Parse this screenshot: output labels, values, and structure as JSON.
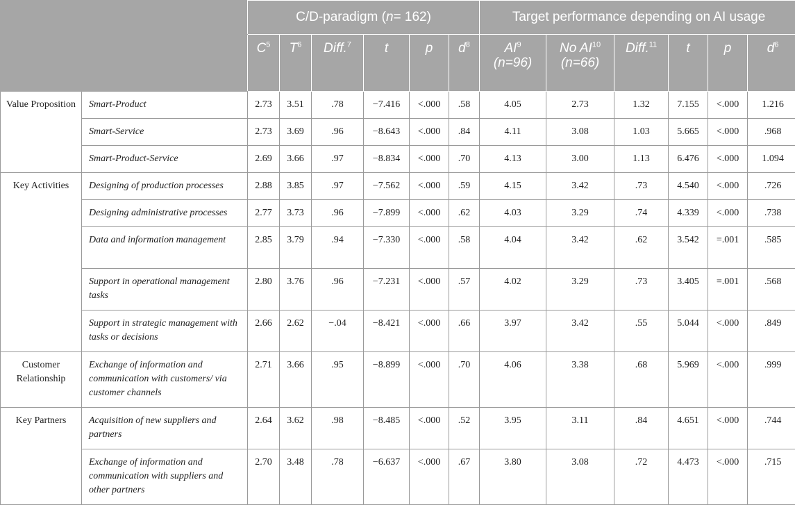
{
  "header": {
    "group1": "C/D-paradigm (n= 162)",
    "group1_pre": "C/D-paradigm (",
    "group1_n": "n",
    "group1_post": "= 162)",
    "group2": "Target performance depending on AI usage",
    "cols": [
      {
        "label": "C",
        "sup": "5"
      },
      {
        "label": "T",
        "sup": "6"
      },
      {
        "label": "Diff.",
        "sup": "7"
      },
      {
        "label": "t",
        "sup": ""
      },
      {
        "label": "p",
        "sup": ""
      },
      {
        "label": "d",
        "sup": "8"
      },
      {
        "label": "AI",
        "sup": "9",
        "sub": "(n=96)"
      },
      {
        "label": "No AI",
        "sup": "10",
        "sub": "(n=66)"
      },
      {
        "label": "Diff.",
        "sup": "11"
      },
      {
        "label": "t",
        "sup": ""
      },
      {
        "label": "p",
        "sup": ""
      },
      {
        "label": "d",
        "sup": "6"
      }
    ]
  },
  "rows": [
    {
      "category": "Value Proposition",
      "item": "Smart-Product",
      "values": [
        "2.73",
        "3.51",
        ".78",
        "−7.416",
        "<.000",
        ".58",
        "4.05",
        "2.73",
        "1.32",
        "7.155",
        "<.000",
        "1.216"
      ]
    },
    {
      "category": "",
      "item": "Smart-Service",
      "values": [
        "2.73",
        "3.69",
        ".96",
        "−8.643",
        "<.000",
        ".84",
        "4.11",
        "3.08",
        "1.03",
        "5.665",
        "<.000",
        ".968"
      ]
    },
    {
      "category": "",
      "item": "Smart-Product-Service",
      "values": [
        "2.69",
        "3.66",
        ".97",
        "−8.834",
        "<.000",
        ".70",
        "4.13",
        "3.00",
        "1.13",
        "6.476",
        "<.000",
        "1.094"
      ]
    },
    {
      "category": "Key Activities",
      "item": "Designing of production processes",
      "values": [
        "2.88",
        "3.85",
        ".97",
        "−7.562",
        "<.000",
        ".59",
        "4.15",
        "3.42",
        ".73",
        "4.540",
        "<.000",
        ".726"
      ]
    },
    {
      "category": "",
      "item": "Designing administrative processes",
      "values": [
        "2.77",
        "3.73",
        ".96",
        "−7.899",
        "<.000",
        ".62",
        "4.03",
        "3.29",
        ".74",
        "4.339",
        "<.000",
        ".738"
      ]
    },
    {
      "category": "",
      "item": "Data and information management",
      "values": [
        "2.85",
        "3.79",
        ".94",
        "−7.330",
        "<.000",
        ".58",
        "4.04",
        "3.42",
        ".62",
        "3.542",
        "=.001",
        ".585"
      ]
    },
    {
      "category": "",
      "item": "Support in operational management tasks",
      "values": [
        "2.80",
        "3.76",
        ".96",
        "−7.231",
        "<.000",
        ".57",
        "4.02",
        "3.29",
        ".73",
        "3.405",
        "=.001",
        ".568"
      ]
    },
    {
      "category": "",
      "item": "Support in strategic management with tasks or decisions",
      "values": [
        "2.66",
        "2.62",
        "−.04",
        "−8.421",
        "<.000",
        ".66",
        "3.97",
        "3.42",
        ".55",
        "5.044",
        "<.000",
        ".849"
      ]
    },
    {
      "category": "Customer Relationship",
      "item": "Exchange of information and communication with customers/ via customer channels",
      "values": [
        "2.71",
        "3.66",
        ".95",
        "−8.899",
        "<.000",
        ".70",
        "4.06",
        "3.38",
        ".68",
        "5.969",
        "<.000",
        ".999"
      ]
    },
    {
      "category": "Key Partners",
      "item": "Acquisition of new suppliers and partners",
      "values": [
        "2.64",
        "3.62",
        ".98",
        "−8.485",
        "<.000",
        ".52",
        "3.95",
        "3.11",
        ".84",
        "4.651",
        "<.000",
        ".744"
      ]
    },
    {
      "category": "",
      "item": "Exchange of information and communication with suppliers and other partners",
      "values": [
        "2.70",
        "3.48",
        ".78",
        "−6.637",
        "<.000",
        ".67",
        "3.80",
        "3.08",
        ".72",
        "4.473",
        "<.000",
        ".715"
      ]
    }
  ]
}
